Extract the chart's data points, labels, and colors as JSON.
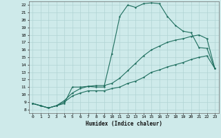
{
  "xlabel": "Humidex (Indice chaleur)",
  "ylabel": "",
  "xlim": [
    -0.5,
    23.5
  ],
  "ylim": [
    7.5,
    22.5
  ],
  "xticks": [
    0,
    1,
    2,
    3,
    4,
    5,
    6,
    7,
    8,
    9,
    10,
    11,
    12,
    13,
    14,
    15,
    16,
    17,
    18,
    19,
    20,
    21,
    22,
    23
  ],
  "yticks": [
    8,
    9,
    10,
    11,
    12,
    13,
    14,
    15,
    16,
    17,
    18,
    19,
    20,
    21,
    22
  ],
  "background_color": "#ceeaea",
  "grid_color": "#b0d4d4",
  "line_color": "#1e6e5e",
  "line1_x": [
    0,
    1,
    2,
    3,
    4,
    5,
    6,
    7,
    8,
    9,
    10,
    11,
    12,
    13,
    14,
    15,
    16,
    17,
    18,
    19,
    20,
    21,
    22,
    23
  ],
  "line1_y": [
    8.8,
    8.5,
    8.2,
    8.5,
    8.8,
    11.0,
    11.0,
    11.1,
    11.0,
    11.0,
    15.5,
    20.5,
    22.0,
    21.7,
    22.2,
    22.3,
    22.2,
    20.5,
    19.3,
    18.5,
    18.3,
    16.3,
    16.2,
    13.5
  ],
  "line2_x": [
    0,
    1,
    2,
    3,
    4,
    5,
    6,
    7,
    8,
    9,
    10,
    11,
    12,
    13,
    14,
    15,
    16,
    17,
    18,
    19,
    20,
    21,
    22,
    23
  ],
  "line2_y": [
    8.8,
    8.5,
    8.2,
    8.5,
    9.2,
    10.2,
    10.8,
    11.1,
    11.2,
    11.2,
    11.5,
    12.2,
    13.2,
    14.2,
    15.2,
    16.0,
    16.5,
    17.0,
    17.3,
    17.5,
    17.8,
    18.0,
    17.5,
    13.5
  ],
  "line3_x": [
    0,
    1,
    2,
    3,
    4,
    5,
    6,
    7,
    8,
    9,
    10,
    11,
    12,
    13,
    14,
    15,
    16,
    17,
    18,
    19,
    20,
    21,
    22,
    23
  ],
  "line3_y": [
    8.8,
    8.5,
    8.2,
    8.5,
    9.0,
    9.8,
    10.2,
    10.5,
    10.5,
    10.5,
    10.8,
    11.0,
    11.5,
    11.8,
    12.3,
    13.0,
    13.3,
    13.7,
    14.0,
    14.3,
    14.7,
    15.0,
    15.2,
    13.5
  ]
}
